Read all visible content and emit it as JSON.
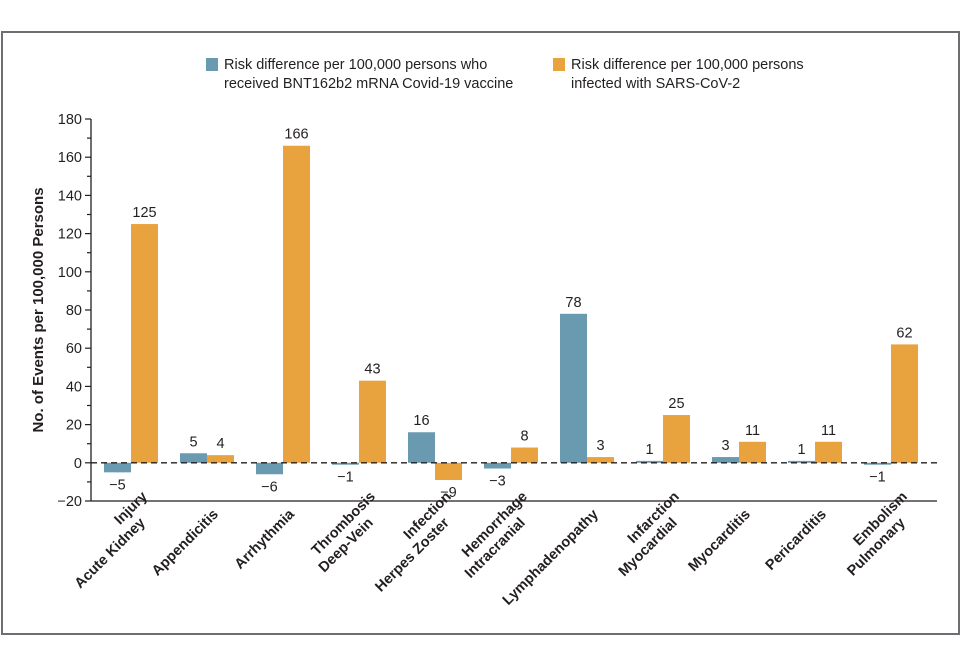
{
  "chart_data": {
    "type": "bar",
    "title": "",
    "xlabel": "",
    "ylabel": "No. of Events per 100,000 Persons",
    "ylim": [
      -20,
      180
    ],
    "yticks_major": [
      -20,
      0,
      20,
      40,
      60,
      80,
      100,
      120,
      140,
      160,
      180
    ],
    "yticks_minor_step": 10,
    "zero_line": "dashed",
    "legend_placement": "top-center",
    "categories": [
      [
        "Acute Kidney",
        "Injury"
      ],
      [
        "Appendicitis"
      ],
      [
        "Arrhythmia"
      ],
      [
        "Deep-Vein",
        "Thrombosis"
      ],
      [
        "Herpes Zoster",
        "Infection"
      ],
      [
        "Intracranial",
        "Hemorrhage"
      ],
      [
        "Lymphadenopathy"
      ],
      [
        "Myocardial",
        "Infarction"
      ],
      [
        "Myocarditis"
      ],
      [
        "Pericarditis"
      ],
      [
        "Pulmonary",
        "Embolism"
      ]
    ],
    "series": [
      {
        "name": [
          "Risk difference per 100,000 persons who",
          "received BNT162b2 mRNA Covid-19 vaccine"
        ],
        "color": "#6a9ab0",
        "values": [
          -5,
          5,
          -6,
          -1,
          16,
          -3,
          78,
          1,
          3,
          1,
          -1
        ]
      },
      {
        "name": [
          "Risk difference per 100,000 persons",
          "infected with SARS-CoV-2"
        ],
        "color": "#e8a23e",
        "values": [
          125,
          4,
          166,
          43,
          -9,
          8,
          3,
          25,
          11,
          11,
          62
        ]
      }
    ]
  }
}
